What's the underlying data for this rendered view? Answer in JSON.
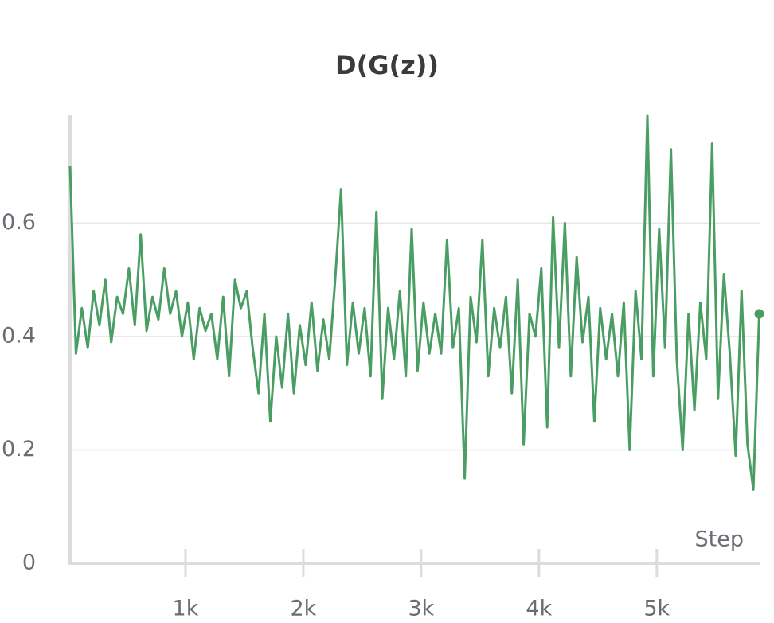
{
  "chart_data": {
    "type": "line",
    "title": "D(G(z))",
    "x_label": "Step",
    "x": [
      20,
      70,
      120,
      170,
      220,
      270,
      320,
      370,
      420,
      470,
      520,
      570,
      620,
      670,
      720,
      770,
      820,
      870,
      920,
      970,
      1020,
      1070,
      1120,
      1170,
      1220,
      1270,
      1320,
      1370,
      1420,
      1470,
      1520,
      1570,
      1620,
      1670,
      1720,
      1770,
      1820,
      1870,
      1920,
      1970,
      2020,
      2070,
      2120,
      2170,
      2220,
      2270,
      2320,
      2370,
      2420,
      2470,
      2520,
      2570,
      2620,
      2670,
      2720,
      2770,
      2820,
      2870,
      2920,
      2970,
      3020,
      3070,
      3120,
      3170,
      3220,
      3270,
      3320,
      3370,
      3420,
      3470,
      3520,
      3570,
      3620,
      3670,
      3720,
      3770,
      3820,
      3870,
      3920,
      3970,
      4020,
      4070,
      4120,
      4170,
      4220,
      4270,
      4320,
      4370,
      4420,
      4470,
      4520,
      4570,
      4620,
      4670,
      4720,
      4770,
      4820,
      4870,
      4920,
      4970,
      5020,
      5070,
      5120,
      5170,
      5220,
      5270,
      5320,
      5370,
      5420,
      5470,
      5520,
      5570,
      5620,
      5670,
      5720,
      5770,
      5820,
      5870
    ],
    "series": [
      {
        "name": "D(G(z))",
        "color": "#4a9e63",
        "values": [
          0.7,
          0.37,
          0.45,
          0.38,
          0.48,
          0.42,
          0.5,
          0.39,
          0.47,
          0.44,
          0.52,
          0.42,
          0.58,
          0.41,
          0.47,
          0.43,
          0.52,
          0.44,
          0.48,
          0.4,
          0.46,
          0.36,
          0.45,
          0.41,
          0.44,
          0.36,
          0.47,
          0.33,
          0.5,
          0.45,
          0.48,
          0.38,
          0.3,
          0.44,
          0.25,
          0.4,
          0.31,
          0.44,
          0.3,
          0.42,
          0.35,
          0.46,
          0.34,
          0.43,
          0.36,
          0.5,
          0.66,
          0.35,
          0.46,
          0.37,
          0.45,
          0.33,
          0.62,
          0.29,
          0.45,
          0.36,
          0.48,
          0.33,
          0.59,
          0.34,
          0.46,
          0.37,
          0.44,
          0.37,
          0.57,
          0.38,
          0.45,
          0.15,
          0.47,
          0.39,
          0.57,
          0.33,
          0.45,
          0.38,
          0.47,
          0.3,
          0.5,
          0.21,
          0.44,
          0.4,
          0.52,
          0.24,
          0.61,
          0.38,
          0.6,
          0.33,
          0.54,
          0.39,
          0.47,
          0.25,
          0.45,
          0.36,
          0.44,
          0.33,
          0.46,
          0.2,
          0.48,
          0.36,
          0.79,
          0.33,
          0.59,
          0.38,
          0.73,
          0.36,
          0.2,
          0.44,
          0.27,
          0.46,
          0.36,
          0.74,
          0.29,
          0.51,
          0.37,
          0.19,
          0.48,
          0.21,
          0.13,
          0.44
        ]
      }
    ],
    "xlim": [
      0,
      5880
    ],
    "ylim": [
      0,
      0.79
    ],
    "xticks": [
      {
        "value": 1000,
        "label": "1k"
      },
      {
        "value": 2000,
        "label": "2k"
      },
      {
        "value": 3000,
        "label": "3k"
      },
      {
        "value": 4000,
        "label": "4k"
      },
      {
        "value": 5000,
        "label": "5k"
      }
    ],
    "yticks": [
      0,
      0.2,
      0.4,
      0.6
    ],
    "grid": true
  }
}
